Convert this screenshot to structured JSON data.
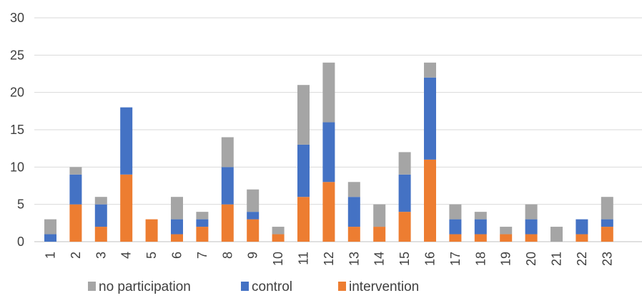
{
  "chart_data": {
    "type": "bar",
    "stacked": true,
    "categories": [
      "1",
      "2",
      "3",
      "4",
      "5",
      "6",
      "7",
      "8",
      "9",
      "10",
      "11",
      "12",
      "13",
      "14",
      "15",
      "16",
      "17",
      "18",
      "19",
      "20",
      "21",
      "22",
      "23"
    ],
    "series": [
      {
        "name": "intervention",
        "color": "#ED7D31",
        "values": [
          0,
          5,
          2,
          9,
          3,
          1,
          2,
          5,
          3,
          1,
          6,
          8,
          2,
          2,
          4,
          11,
          1,
          1,
          1,
          1,
          0,
          1,
          2
        ]
      },
      {
        "name": "control",
        "color": "#4472C4",
        "values": [
          1,
          4,
          3,
          9,
          0,
          2,
          1,
          5,
          1,
          0,
          7,
          8,
          4,
          0,
          5,
          11,
          2,
          2,
          0,
          2,
          0,
          2,
          1
        ]
      },
      {
        "name": "no participation",
        "color": "#A5A5A5",
        "values": [
          2,
          1,
          1,
          0,
          0,
          3,
          1,
          4,
          3,
          1,
          8,
          8,
          2,
          3,
          3,
          2,
          2,
          1,
          1,
          2,
          2,
          0,
          3
        ]
      }
    ],
    "ylim": [
      0,
      30
    ],
    "yticks": [
      0,
      5,
      10,
      15,
      20,
      25,
      30
    ],
    "grid": true,
    "legend_position": "bottom",
    "legend_order": [
      "no participation",
      "control",
      "intervention"
    ],
    "gridline_color": "#d9d9d9"
  }
}
